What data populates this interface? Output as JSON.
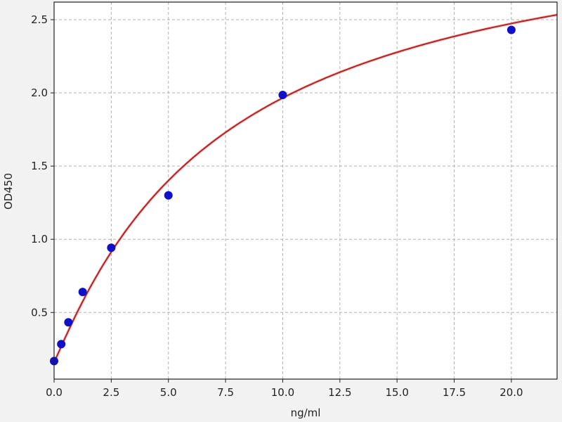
{
  "chart_data": {
    "type": "scatter",
    "title": "",
    "xlabel": "ng/ml",
    "ylabel": "OD450",
    "xlim": [
      0,
      22
    ],
    "ylim": [
      0.045,
      2.62
    ],
    "grid": true,
    "x_ticks": [
      "0.0",
      "2.5",
      "5.0",
      "7.5",
      "10.0",
      "12.5",
      "15.0",
      "17.5",
      "20.0"
    ],
    "y_ticks": [
      "0.5",
      "1.0",
      "1.5",
      "2.0",
      "2.5"
    ],
    "series": [
      {
        "x": [
          0,
          0.3125,
          0.625,
          1.25,
          2.5,
          5,
          10,
          20
        ],
        "y": [
          0.168,
          0.284,
          0.433,
          0.64,
          0.942,
          1.3,
          1.986,
          2.43
        ]
      }
    ],
    "fit_curve": {
      "model": "4PL",
      "A": 0.16,
      "B": 1.05,
      "C": 7.5,
      "D": 3.3
    },
    "colors": {
      "points": "#1010c8",
      "curve": "#b22222",
      "grid": "#b0b0b0"
    }
  }
}
